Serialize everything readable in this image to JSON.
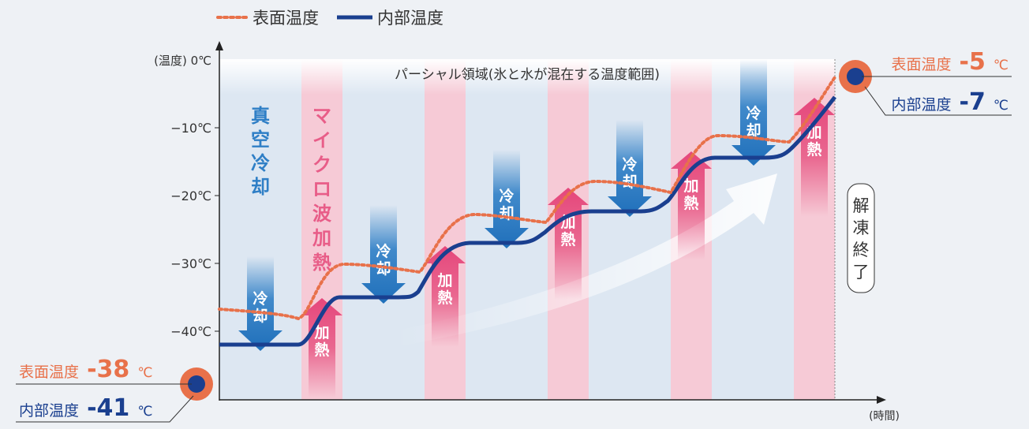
{
  "legend": {
    "surface": "表面温度",
    "internal": "内部温度"
  },
  "axes": {
    "y_label": "(温度)",
    "y_ticks": [
      "0℃",
      "−10℃",
      "−20℃",
      "−30℃",
      "−40℃"
    ],
    "x_label": "(時間)"
  },
  "partial_zone": "パーシャル領域(氷と水が混在する温度範囲)",
  "vacuum_label": "真空冷却",
  "microwave_label": "マイクロ波加熱",
  "cool_label": "冷却",
  "heat_label": "加熱",
  "end_label": "解凍終了",
  "start": {
    "surface_label": "表面温度",
    "surface_value": "-38",
    "surface_unit": "℃",
    "internal_label": "内部温度",
    "internal_value": "-41",
    "internal_unit": "℃"
  },
  "end": {
    "surface_label": "表面温度",
    "surface_value": "-5",
    "surface_unit": "℃",
    "internal_label": "内部温度",
    "internal_value": "-7",
    "internal_unit": "℃"
  },
  "colors": {
    "surface": "#e8714a",
    "internal": "#1a3f8f",
    "cool_band": "#d7e3f1",
    "heat_band": "#f6cad6",
    "cool_arrow": "#2f7fc6",
    "heat_arrow": "#e85d88"
  }
}
